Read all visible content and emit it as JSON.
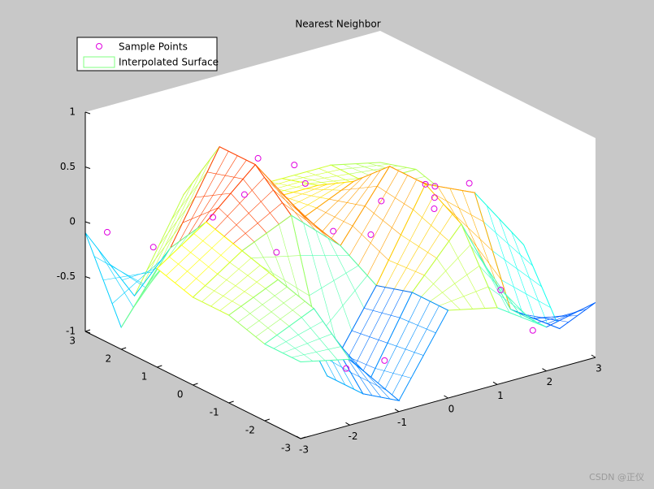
{
  "chart_data": {
    "type": "surface",
    "title": "Nearest Neighbor",
    "xlim": [
      -3,
      3
    ],
    "ylim": [
      -3,
      3
    ],
    "zlim": [
      -1,
      1
    ],
    "xticks": [
      -3,
      -2,
      -1,
      0,
      1,
      2,
      3
    ],
    "yticks": [
      -3,
      -2,
      -1,
      0,
      1,
      2,
      3
    ],
    "zticks": [
      -1,
      -0.5,
      0,
      0.5,
      1
    ],
    "surface": {
      "name": "Interpolated Surface",
      "colormap": "jet",
      "x": [
        -3,
        -2,
        -1,
        0,
        1,
        2,
        3
      ],
      "y": [
        -3,
        -2,
        -1,
        0,
        1,
        2,
        3
      ],
      "z": [
        [
          -0.3,
          -0.4,
          -0.9,
          -0.2,
          -0.3,
          -0.6,
          -0.5
        ],
        [
          -0.3,
          -0.1,
          -1,
          -0.2,
          0.3,
          -0.6,
          -0.9
        ],
        [
          -0.2,
          0.0,
          -1,
          -0.3,
          0.5,
          0.3,
          -0.3
        ],
        [
          -0.2,
          0.1,
          0.3,
          -0.1,
          0.5,
          -0.1,
          -0.2
        ],
        [
          -0.1,
          0.2,
          0.6,
          0.0,
          0.2,
          -0.1,
          -0.2
        ],
        [
          -0.8,
          -0.2,
          0.6,
          0.0,
          0.0,
          -0.1,
          -0.1
        ],
        [
          -0.1,
          -0.8,
          0.0,
          -0.1,
          -0.1,
          -0.1,
          -0.2
        ]
      ]
    },
    "points": {
      "name": "Sample Points",
      "color": "#e000e0",
      "x": [
        -2.7,
        -2.2,
        -1.5,
        -0.8,
        -0.5,
        0.0,
        0.4,
        -1.0,
        -2.0,
        1.0,
        1.6,
        2.2,
        2.5,
        2.8,
        1.8,
        0.6,
        -0.2,
        -1.3,
        2.0,
        2.6
      ],
      "y": [
        2.8,
        2.2,
        1.5,
        1.2,
        0.6,
        0.2,
        -0.3,
        -2.6,
        -2.9,
        -1.0,
        -1.4,
        0.4,
        0.8,
        1.2,
        -2.0,
        1.8,
        2.4,
        0.0,
        1.6,
        -1.8
      ],
      "z": [
        -0.1,
        -0.2,
        0.1,
        0.6,
        0.6,
        0.0,
        0.0,
        -0.6,
        -0.5,
        0.5,
        0.5,
        -0.1,
        -0.1,
        -0.1,
        -0.4,
        0.1,
        0.0,
        0.0,
        -0.2,
        -0.9
      ]
    }
  },
  "watermark": "CSDN @正仪"
}
